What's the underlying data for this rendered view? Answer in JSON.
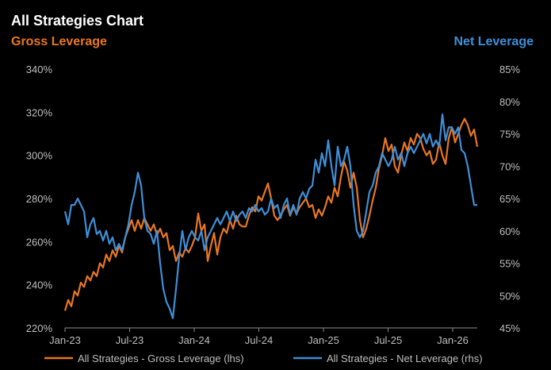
{
  "chart_data": {
    "type": "line",
    "title": "All Strategies Chart",
    "left_axis_title": "Gross Leverage",
    "right_axis_title": "Net Leverage",
    "x_tick_labels": [
      "Jan-23",
      "Jul-23",
      "Jan-24",
      "Jul-24",
      "Jan-25",
      "Jul-25",
      "Jan-26"
    ],
    "x_range": [
      0,
      39
    ],
    "left_ylim": [
      220,
      340
    ],
    "left_ticks": [
      220,
      240,
      260,
      280,
      300,
      320,
      340
    ],
    "left_tick_format": "{v}%",
    "right_ylim": [
      45,
      85
    ],
    "right_ticks": [
      45,
      50,
      55,
      60,
      65,
      70,
      75,
      80,
      85
    ],
    "right_tick_format": "{v}%",
    "legend_position": "bottom",
    "grid": false,
    "series": [
      {
        "name": "All Strategies - Gross Leverage (lhs)",
        "axis": "left",
        "color": "#e87722",
        "points": [
          [
            0.0,
            228
          ],
          [
            0.3,
            233
          ],
          [
            0.6,
            230
          ],
          [
            0.9,
            237
          ],
          [
            1.2,
            235
          ],
          [
            1.5,
            241
          ],
          [
            1.8,
            239
          ],
          [
            2.1,
            244
          ],
          [
            2.4,
            242
          ],
          [
            2.7,
            246
          ],
          [
            3.0,
            244
          ],
          [
            3.3,
            250
          ],
          [
            3.6,
            248
          ],
          [
            3.9,
            254
          ],
          [
            4.2,
            251
          ],
          [
            4.5,
            256
          ],
          [
            4.8,
            253
          ],
          [
            5.1,
            258
          ],
          [
            5.4,
            255
          ],
          [
            5.7,
            262
          ],
          [
            6.0,
            266
          ],
          [
            6.3,
            270
          ],
          [
            6.6,
            265
          ],
          [
            6.9,
            270
          ],
          [
            7.2,
            266
          ],
          [
            7.5,
            271
          ],
          [
            7.8,
            268
          ],
          [
            8.1,
            265
          ],
          [
            8.4,
            268
          ],
          [
            8.7,
            263
          ],
          [
            9.0,
            266
          ],
          [
            9.3,
            262
          ],
          [
            9.6,
            264
          ],
          [
            9.9,
            256
          ],
          [
            10.2,
            258
          ],
          [
            10.5,
            251
          ],
          [
            10.8,
            255
          ],
          [
            11.1,
            253
          ],
          [
            11.4,
            257
          ],
          [
            11.7,
            255
          ],
          [
            12.0,
            258
          ],
          [
            12.3,
            262
          ],
          [
            12.6,
            273
          ],
          [
            12.9,
            265
          ],
          [
            13.2,
            268
          ],
          [
            13.5,
            251
          ],
          [
            13.8,
            258
          ],
          [
            14.1,
            264
          ],
          [
            14.4,
            254
          ],
          [
            14.7,
            262
          ],
          [
            15.0,
            266
          ],
          [
            15.3,
            264
          ],
          [
            15.6,
            270
          ],
          [
            15.9,
            266
          ],
          [
            16.2,
            272
          ],
          [
            16.5,
            268
          ],
          [
            16.8,
            267
          ],
          [
            17.1,
            267
          ],
          [
            17.4,
            272
          ],
          [
            17.7,
            276
          ],
          [
            18.0,
            274
          ],
          [
            18.3,
            281
          ],
          [
            18.6,
            279
          ],
          [
            18.9,
            283
          ],
          [
            19.2,
            287
          ],
          [
            19.5,
            280
          ],
          [
            19.8,
            272
          ],
          [
            20.1,
            270
          ],
          [
            20.4,
            272
          ],
          [
            20.7,
            275
          ],
          [
            21.0,
            277
          ],
          [
            21.3,
            272
          ],
          [
            21.6,
            276
          ],
          [
            21.9,
            273
          ],
          [
            22.2,
            276
          ],
          [
            22.5,
            278
          ],
          [
            22.8,
            280
          ],
          [
            23.1,
            276
          ],
          [
            23.4,
            277
          ],
          [
            23.7,
            271
          ],
          [
            24.0,
            275
          ],
          [
            24.3,
            272
          ],
          [
            24.6,
            276
          ],
          [
            24.9,
            281
          ],
          [
            25.2,
            278
          ],
          [
            25.5,
            285
          ],
          [
            25.8,
            281
          ],
          [
            26.1,
            290
          ],
          [
            26.4,
            297
          ],
          [
            26.7,
            293
          ],
          [
            27.0,
            285
          ],
          [
            27.3,
            292
          ],
          [
            27.6,
            285
          ],
          [
            27.9,
            270
          ],
          [
            28.2,
            262
          ],
          [
            28.5,
            266
          ],
          [
            28.8,
            272
          ],
          [
            29.1,
            279
          ],
          [
            29.4,
            285
          ],
          [
            29.7,
            294
          ],
          [
            30.0,
            300
          ],
          [
            30.3,
            308
          ],
          [
            30.6,
            302
          ],
          [
            30.9,
            305
          ],
          [
            31.2,
            295
          ],
          [
            31.5,
            292
          ],
          [
            31.8,
            300
          ],
          [
            32.1,
            306
          ],
          [
            32.4,
            302
          ],
          [
            32.7,
            308
          ],
          [
            33.0,
            305
          ],
          [
            33.3,
            310
          ],
          [
            33.6,
            308
          ],
          [
            33.9,
            303
          ],
          [
            34.2,
            300
          ],
          [
            34.5,
            302
          ],
          [
            34.8,
            296
          ],
          [
            35.1,
            298
          ],
          [
            35.4,
            306
          ],
          [
            35.7,
            300
          ],
          [
            36.0,
            296
          ],
          [
            36.3,
            308
          ],
          [
            36.6,
            313
          ],
          [
            36.9,
            306
          ],
          [
            37.2,
            310
          ],
          [
            37.5,
            314
          ],
          [
            37.8,
            317
          ],
          [
            38.1,
            314
          ],
          [
            38.4,
            309
          ],
          [
            38.7,
            312
          ],
          [
            39.0,
            304
          ]
        ]
      },
      {
        "name": "All Strategies - Net Leverage (rhs)",
        "axis": "right",
        "color": "#3f8fd8",
        "points": [
          [
            0.0,
            63
          ],
          [
            0.3,
            61
          ],
          [
            0.6,
            64
          ],
          [
            0.9,
            64
          ],
          [
            1.2,
            65
          ],
          [
            1.5,
            64
          ],
          [
            1.8,
            63
          ],
          [
            2.1,
            59
          ],
          [
            2.4,
            61
          ],
          [
            2.7,
            62
          ],
          [
            3.0,
            59.5
          ],
          [
            3.3,
            60
          ],
          [
            3.6,
            58.5
          ],
          [
            3.9,
            60
          ],
          [
            4.2,
            58
          ],
          [
            4.5,
            59
          ],
          [
            4.8,
            57
          ],
          [
            5.1,
            58
          ],
          [
            5.4,
            57
          ],
          [
            5.7,
            59
          ],
          [
            6.0,
            61
          ],
          [
            6.3,
            64
          ],
          [
            6.6,
            66
          ],
          [
            6.9,
            69
          ],
          [
            7.2,
            67
          ],
          [
            7.5,
            62
          ],
          [
            7.8,
            60
          ],
          [
            8.1,
            59.5
          ],
          [
            8.4,
            58
          ],
          [
            8.7,
            60
          ],
          [
            9.0,
            55
          ],
          [
            9.3,
            51
          ],
          [
            9.6,
            49
          ],
          [
            9.9,
            48
          ],
          [
            10.2,
            46.5
          ],
          [
            10.5,
            51
          ],
          [
            10.8,
            56
          ],
          [
            11.1,
            60
          ],
          [
            11.4,
            57
          ],
          [
            11.7,
            59
          ],
          [
            12.0,
            60
          ],
          [
            12.3,
            59
          ],
          [
            12.6,
            58.5
          ],
          [
            12.9,
            60
          ],
          [
            13.2,
            57
          ],
          [
            13.5,
            59
          ],
          [
            13.8,
            60
          ],
          [
            14.1,
            61
          ],
          [
            14.4,
            62
          ],
          [
            14.7,
            61
          ],
          [
            15.0,
            62
          ],
          [
            15.3,
            63
          ],
          [
            15.6,
            61.5
          ],
          [
            15.9,
            63
          ],
          [
            16.2,
            61.5
          ],
          [
            16.5,
            62.5
          ],
          [
            16.8,
            63
          ],
          [
            17.1,
            62
          ],
          [
            17.4,
            63.5
          ],
          [
            17.7,
            63
          ],
          [
            18.0,
            64
          ],
          [
            18.3,
            63
          ],
          [
            18.6,
            63.5
          ],
          [
            18.9,
            62.5
          ],
          [
            19.2,
            63
          ],
          [
            19.5,
            65
          ],
          [
            19.8,
            63.5
          ],
          [
            20.1,
            64
          ],
          [
            20.4,
            62
          ],
          [
            20.7,
            64
          ],
          [
            21.0,
            65
          ],
          [
            21.3,
            62.5
          ],
          [
            21.6,
            64
          ],
          [
            21.9,
            62.5
          ],
          [
            22.2,
            65
          ],
          [
            22.5,
            66
          ],
          [
            22.8,
            65
          ],
          [
            23.1,
            66.5
          ],
          [
            23.4,
            67
          ],
          [
            23.7,
            71
          ],
          [
            24.0,
            69
          ],
          [
            24.3,
            72
          ],
          [
            24.6,
            70
          ],
          [
            24.9,
            74
          ],
          [
            25.2,
            70
          ],
          [
            25.5,
            67
          ],
          [
            25.8,
            73
          ],
          [
            26.1,
            70
          ],
          [
            26.4,
            71
          ],
          [
            26.7,
            73
          ],
          [
            27.0,
            70
          ],
          [
            27.3,
            64
          ],
          [
            27.6,
            60
          ],
          [
            27.9,
            59
          ],
          [
            28.2,
            60
          ],
          [
            28.5,
            63
          ],
          [
            28.8,
            66
          ],
          [
            29.1,
            67
          ],
          [
            29.4,
            69
          ],
          [
            29.7,
            70
          ],
          [
            30.0,
            72
          ],
          [
            30.3,
            71
          ],
          [
            30.6,
            70
          ],
          [
            30.9,
            71
          ],
          [
            31.2,
            73
          ],
          [
            31.5,
            71
          ],
          [
            31.8,
            72
          ],
          [
            32.1,
            70
          ],
          [
            32.4,
            72
          ],
          [
            32.7,
            73
          ],
          [
            33.0,
            72
          ],
          [
            33.3,
            73
          ],
          [
            33.6,
            74
          ],
          [
            33.9,
            75
          ],
          [
            34.2,
            73.5
          ],
          [
            34.5,
            75
          ],
          [
            34.8,
            73
          ],
          [
            35.1,
            74
          ],
          [
            35.4,
            73
          ],
          [
            35.7,
            78
          ],
          [
            36.0,
            74
          ],
          [
            36.3,
            76
          ],
          [
            36.6,
            76
          ],
          [
            36.9,
            75
          ],
          [
            37.2,
            76
          ],
          [
            37.5,
            72.5
          ],
          [
            37.8,
            72
          ],
          [
            38.1,
            70
          ],
          [
            38.4,
            67
          ],
          [
            38.7,
            64
          ],
          [
            39.0,
            64
          ]
        ]
      }
    ]
  }
}
